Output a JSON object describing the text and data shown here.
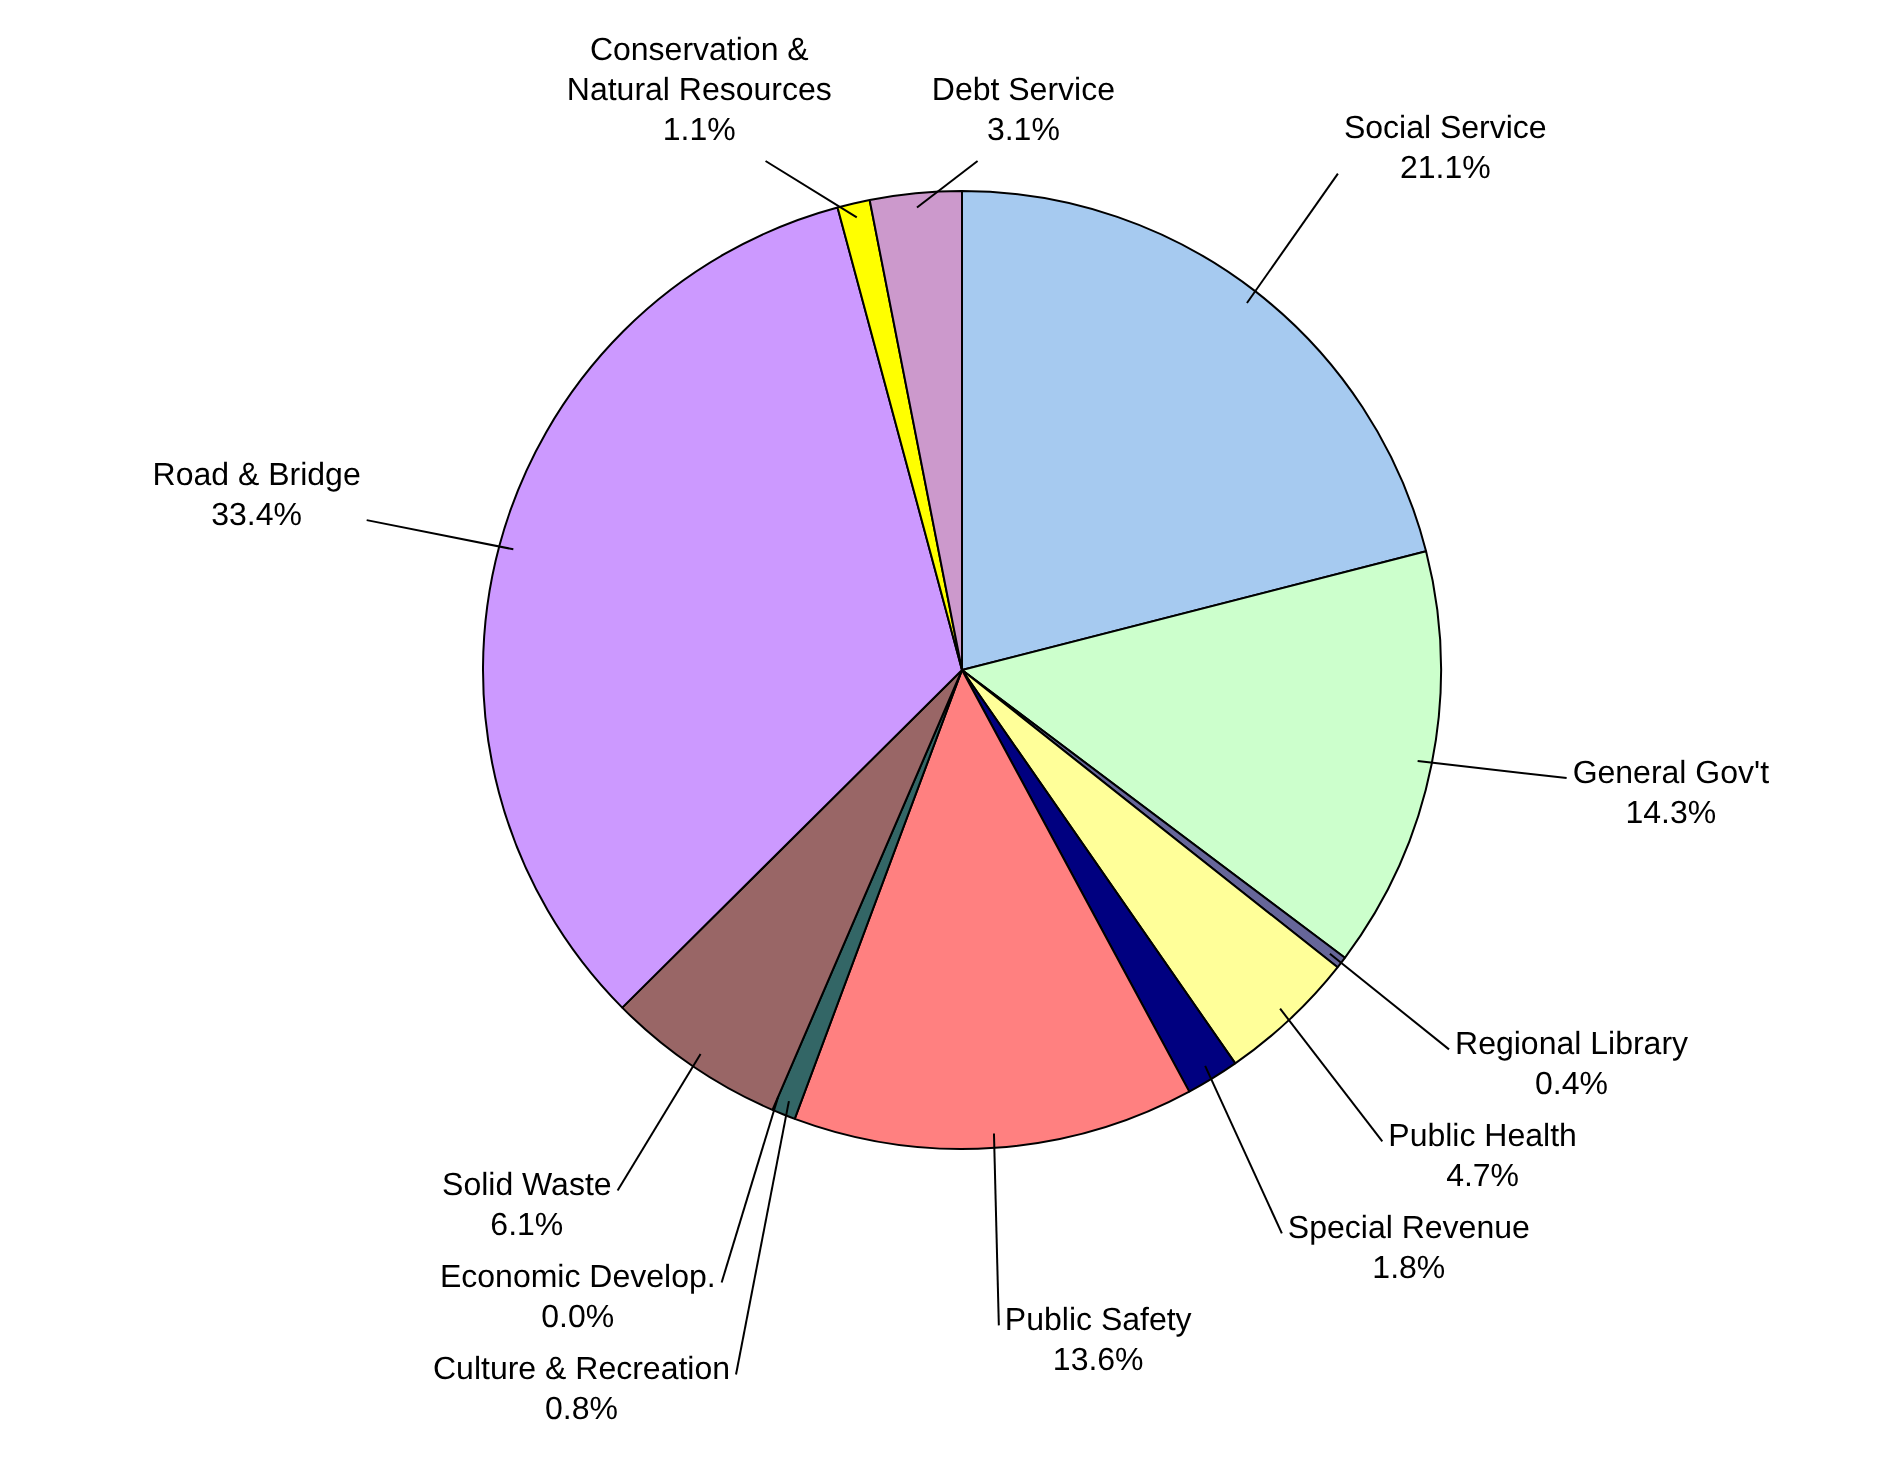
{
  "chart_data": {
    "type": "pie",
    "categories": [
      "Social Service",
      "General Gov't",
      "Regional Library",
      "Public Health",
      "Special Revenue",
      "Public Safety",
      "Culture & Recreation",
      "Economic Develop.",
      "Solid Waste",
      "Road & Bridge",
      "Conservation & Natural Resources",
      "Debt Service"
    ],
    "values": [
      21.1,
      14.3,
      0.4,
      4.7,
      1.8,
      13.6,
      0.8,
      0.0,
      6.1,
      33.4,
      1.1,
      3.1
    ],
    "value_labels": [
      "21.1%",
      "14.3%",
      "0.4%",
      "4.7%",
      "1.8%",
      "13.6%",
      "0.8%",
      "0.0%",
      "6.1%",
      "33.4%",
      "1.1%",
      "3.1%"
    ],
    "colors": [
      "#a6caf0",
      "#ccffcc",
      "#666699",
      "#ffff99",
      "#000080",
      "#ff8080",
      "#336666",
      "#808080",
      "#996666",
      "#cc99ff",
      "#ffff00",
      "#cc99cc"
    ],
    "legend": false
  }
}
